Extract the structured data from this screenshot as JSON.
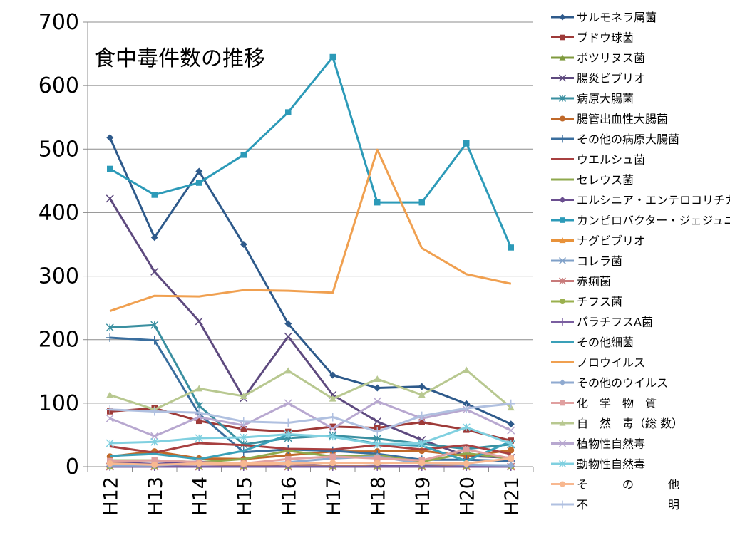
{
  "chart_data": {
    "type": "line",
    "title": "食中毒件数の推移",
    "xlabel": "",
    "ylabel": "",
    "categories": [
      "H12",
      "H13",
      "H14",
      "H15",
      "H16",
      "H17",
      "H18",
      "H19",
      "H20",
      "H21"
    ],
    "ylim": [
      0,
      700
    ],
    "yticks": [
      "0",
      "100",
      "200",
      "300",
      "400",
      "500",
      "600",
      "700"
    ],
    "grid": true,
    "legend_position": "right",
    "series": [
      {
        "name": "サルモネラ属菌",
        "color": "#2E5A8B",
        "marker": "diamond",
        "values": [
          518,
          361,
          465,
          350,
          225,
          144,
          124,
          126,
          99,
          67
        ]
      },
      {
        "name": "ブドウ球菌",
        "color": "#9E3A38",
        "marker": "square",
        "values": [
          87,
          92,
          72,
          59,
          55,
          63,
          61,
          70,
          58,
          41
        ]
      },
      {
        "name": "ボツリヌス菌",
        "color": "#7F9A3E",
        "marker": "triangle",
        "values": [
          0,
          0,
          0,
          0,
          0,
          0,
          1,
          1,
          0,
          1
        ]
      },
      {
        "name": "腸炎ビブリオ",
        "color": "#5E4A7F",
        "marker": "x",
        "values": [
          422,
          307,
          229,
          108,
          205,
          113,
          71,
          42,
          17,
          14
        ]
      },
      {
        "name": "病原大腸菌",
        "color": "#3A8FA0",
        "marker": "asterisk",
        "values": [
          219,
          223,
          96,
          35,
          45,
          49,
          44,
          36,
          28,
          35
        ]
      },
      {
        "name": "腸管出血性大腸菌",
        "color": "#C0692A",
        "marker": "circle",
        "values": [
          16,
          24,
          13,
          12,
          18,
          24,
          24,
          25,
          17,
          26
        ]
      },
      {
        "name": "その他の病原大腸菌",
        "color": "#3A6E9E",
        "marker": "plus",
        "values": [
          203,
          199,
          83,
          23,
          27,
          25,
          20,
          11,
          11,
          9
        ]
      },
      {
        "name": "ウエルシュ菌",
        "color": "#A84040",
        "marker": "none",
        "values": [
          32,
          22,
          37,
          34,
          28,
          27,
          34,
          27,
          34,
          20
        ]
      },
      {
        "name": "セレウス菌",
        "color": "#8FA94E",
        "marker": "none",
        "values": [
          10,
          10,
          7,
          12,
          25,
          16,
          18,
          8,
          21,
          13
        ]
      },
      {
        "name": "エルシニア・エンテロコリチカ",
        "color": "#6A4E8F",
        "marker": "diamond",
        "values": [
          7,
          4,
          8,
          1,
          4,
          1,
          2,
          1,
          1,
          2
        ]
      },
      {
        "name": "カンピロバクター・ジェジュニ/コリ",
        "color": "#2C9AB8",
        "marker": "square",
        "values": [
          469,
          428,
          447,
          491,
          558,
          645,
          416,
          416,
          509,
          345
        ]
      },
      {
        "name": "ナグビブリオ",
        "color": "#E8923A",
        "marker": "triangle",
        "values": [
          2,
          1,
          0,
          1,
          0,
          2,
          0,
          0,
          1,
          1
        ]
      },
      {
        "name": "コレラ菌",
        "color": "#7FA0C8",
        "marker": "x",
        "values": [
          0,
          0,
          0,
          0,
          0,
          0,
          0,
          0,
          0,
          0
        ]
      },
      {
        "name": "赤痢菌",
        "color": "#C87A7A",
        "marker": "asterisk",
        "values": [
          0,
          0,
          0,
          0,
          0,
          0,
          0,
          0,
          0,
          0
        ]
      },
      {
        "name": "チフス菌",
        "color": "#9AB04E",
        "marker": "circle",
        "values": [
          0,
          0,
          0,
          0,
          0,
          0,
          0,
          0,
          0,
          0
        ]
      },
      {
        "name": "パラチフスA菌",
        "color": "#7A5EA0",
        "marker": "plus",
        "values": [
          0,
          0,
          0,
          0,
          0,
          0,
          0,
          0,
          0,
          0
        ]
      },
      {
        "name": "その他細菌",
        "color": "#3AA0B8",
        "marker": "none",
        "values": [
          17,
          20,
          12,
          25,
          50,
          48,
          36,
          33,
          9,
          40
        ]
      },
      {
        "name": "ノロウイルス",
        "color": "#F0A050",
        "marker": "none",
        "values": [
          245,
          269,
          268,
          278,
          277,
          274,
          499,
          344,
          303,
          288
        ]
      },
      {
        "name": "その他のウイルス",
        "color": "#8FAAD0",
        "marker": "diamond",
        "values": [
          2,
          2,
          5,
          4,
          7,
          13,
          16,
          5,
          3,
          2
        ]
      },
      {
        "name": "化　学　物　質",
        "color": "#E0A0A0",
        "marker": "square",
        "values": [
          9,
          10,
          7,
          5,
          12,
          16,
          13,
          10,
          27,
          13
        ]
      },
      {
        "name": "自　然　毒（総 数）",
        "color": "#B8C890",
        "marker": "triangle",
        "values": [
          113,
          90,
          123,
          111,
          151,
          107,
          138,
          113,
          152,
          93
        ]
      },
      {
        "name": "植物性自然毒",
        "color": "#B8A8D0",
        "marker": "x",
        "values": [
          76,
          48,
          78,
          65,
          100,
          60,
          103,
          76,
          90,
          57
        ]
      },
      {
        "name": "動物性自然毒",
        "color": "#80D0E0",
        "marker": "asterisk",
        "values": [
          37,
          39,
          45,
          46,
          51,
          47,
          35,
          37,
          62,
          36
        ]
      },
      {
        "name": "そ　　　の　　　他",
        "color": "#F8B890",
        "marker": "circle",
        "values": [
          5,
          3,
          5,
          5,
          5,
          6,
          6,
          6,
          5,
          13
        ]
      },
      {
        "name": "不　　　　　　　明",
        "color": "#B0C0E0",
        "marker": "plus",
        "values": [
          90,
          87,
          85,
          71,
          69,
          78,
          55,
          80,
          92,
          99
        ]
      }
    ]
  }
}
